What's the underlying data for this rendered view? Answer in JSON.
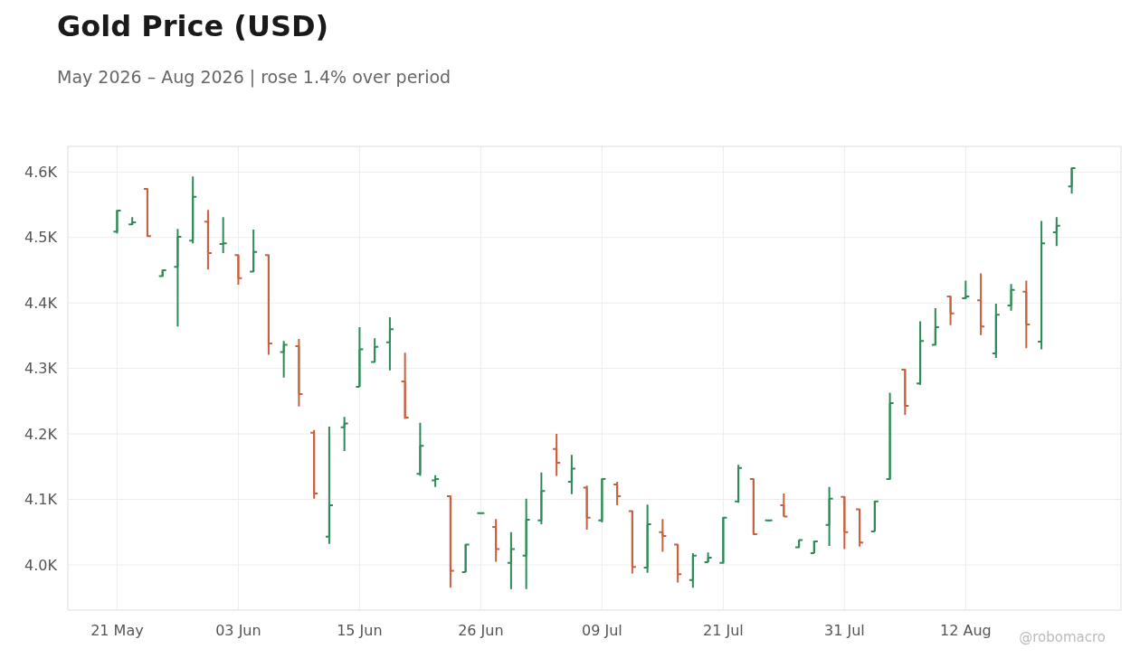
{
  "chart_data": {
    "type": "candlestick",
    "title": "Gold Price (USD)",
    "subtitle": "May 2026 – Aug 2026 | rose 1.4% over period",
    "annotations": [
      "@robomacro"
    ],
    "categories": [
      "21 May",
      null,
      null,
      null,
      null,
      null,
      null,
      null,
      "03 Jun",
      null,
      null,
      null,
      null,
      null,
      null,
      null,
      "15 Jun",
      null,
      null,
      null,
      null,
      null,
      null,
      null,
      "26 Jun",
      null,
      null,
      null,
      null,
      null,
      null,
      null,
      "09 Jul",
      null,
      null,
      null,
      null,
      null,
      null,
      null,
      "21 Jul",
      null,
      null,
      null,
      null,
      null,
      null,
      null,
      "31 Jul",
      null,
      null,
      null,
      null,
      null,
      null,
      null,
      "12 Aug",
      null,
      null,
      null,
      null,
      null,
      null,
      null
    ],
    "ohlc": [
      [
        4509,
        4542,
        4506,
        4541
      ],
      [
        4520,
        4531,
        4519,
        4523
      ],
      [
        4574,
        4575,
        4501,
        4502
      ],
      [
        4441,
        4451,
        4440,
        4450
      ],
      [
        4455,
        4513,
        4364,
        4501
      ],
      [
        4495,
        4593,
        4491,
        4562
      ],
      [
        4524,
        4542,
        4451,
        4476
      ],
      [
        4490,
        4531,
        4476,
        4491
      ],
      [
        4473,
        4474,
        4428,
        4438
      ],
      [
        4448,
        4512,
        4447,
        4478
      ],
      [
        4473,
        4474,
        4321,
        4338
      ],
      [
        4325,
        4342,
        4286,
        4336
      ],
      [
        4334,
        4345,
        4242,
        4261
      ],
      [
        4202,
        4206,
        4101,
        4109
      ],
      [
        4043,
        4211,
        4032,
        4091
      ],
      [
        4210,
        4226,
        4174,
        4216
      ],
      [
        4272,
        4363,
        4272,
        4329
      ],
      [
        4310,
        4346,
        4309,
        4333
      ],
      [
        4340,
        4378,
        4297,
        4360
      ],
      [
        4280,
        4324,
        4223,
        4225
      ],
      [
        4139,
        4217,
        4136,
        4182
      ],
      [
        4129,
        4137,
        4119,
        4131
      ],
      [
        4105,
        4106,
        3965,
        3991
      ],
      [
        3989,
        4032,
        3989,
        4031
      ],
      [
        4079,
        4079,
        4079,
        4079
      ],
      [
        4058,
        4070,
        4005,
        4024
      ],
      [
        4003,
        4050,
        3963,
        4024
      ],
      [
        4014,
        4101,
        3963,
        4069
      ],
      [
        4068,
        4141,
        4062,
        4113
      ],
      [
        4177,
        4200,
        4136,
        4156
      ],
      [
        4127,
        4168,
        4108,
        4147
      ],
      [
        4118,
        4121,
        4054,
        4072
      ],
      [
        4068,
        4132,
        4065,
        4131
      ],
      [
        4123,
        4127,
        4091,
        4105
      ],
      [
        4082,
        4083,
        3987,
        3997
      ],
      [
        3996,
        4092,
        3988,
        4062
      ],
      [
        4050,
        4070,
        4020,
        4044
      ],
      [
        4031,
        4032,
        3973,
        3986
      ],
      [
        3977,
        4018,
        3965,
        4014
      ],
      [
        4004,
        4019,
        4004,
        4011
      ],
      [
        4003,
        4073,
        4002,
        4072
      ],
      [
        4097,
        4153,
        4095,
        4148
      ],
      [
        4131,
        4132,
        4046,
        4047
      ],
      [
        4068,
        4068,
        4068,
        4068
      ],
      [
        4091,
        4109,
        4074,
        4074
      ],
      [
        4027,
        4038,
        4026,
        4038
      ],
      [
        4018,
        4037,
        4018,
        4036
      ],
      [
        4061,
        4119,
        4029,
        4101
      ],
      [
        4104,
        4105,
        4024,
        4050
      ],
      [
        4085,
        4086,
        4028,
        4034
      ],
      [
        4051,
        4098,
        4051,
        4097
      ],
      [
        4131,
        4263,
        4130,
        4247
      ],
      [
        4298,
        4299,
        4229,
        4243
      ],
      [
        4277,
        4372,
        4275,
        4342
      ],
      [
        4336,
        4392,
        4335,
        4363
      ],
      [
        4410,
        4411,
        4366,
        4384
      ],
      [
        4407,
        4434,
        4406,
        4410
      ],
      [
        4404,
        4445,
        4351,
        4364
      ],
      [
        4323,
        4399,
        4316,
        4382
      ],
      [
        4396,
        4429,
        4388,
        4420
      ],
      [
        4417,
        4434,
        4331,
        4367
      ],
      [
        4341,
        4525,
        4329,
        4491
      ],
      [
        4508,
        4531,
        4487,
        4518
      ],
      [
        4578,
        4607,
        4567,
        4606
      ]
    ],
    "colors": [
      "#2e8b57",
      "#2e8b57",
      "#c9603f",
      "#2e8b57",
      "#2e8b57",
      "#2e8b57",
      "#c9603f",
      "#2e8b57",
      "#c9603f",
      "#2e8b57",
      "#c9603f",
      "#2e8b57",
      "#c9603f",
      "#c9603f",
      "#2e8b57",
      "#2e8b57",
      "#2e8b57",
      "#2e8b57",
      "#2e8b57",
      "#c9603f",
      "#2e8b57",
      "#2e8b57",
      "#c9603f",
      "#2e8b57",
      "#2e8b57",
      "#c9603f",
      "#2e8b57",
      "#2e8b57",
      "#2e8b57",
      "#c9603f",
      "#2e8b57",
      "#c9603f",
      "#2e8b57",
      "#c9603f",
      "#c9603f",
      "#2e8b57",
      "#c9603f",
      "#c9603f",
      "#2e8b57",
      "#2e8b57",
      "#2e8b57",
      "#2e8b57",
      "#c9603f",
      "#2e8b57",
      "#c9603f",
      "#2e8b57",
      "#2e8b57",
      "#2e8b57",
      "#c9603f",
      "#c9603f",
      "#2e8b57",
      "#2e8b57",
      "#c9603f",
      "#2e8b57",
      "#2e8b57",
      "#c9603f",
      "#2e8b57",
      "#c9603f",
      "#2e8b57",
      "#2e8b57",
      "#c9603f",
      "#2e8b57",
      "#2e8b57",
      "#2e8b57"
    ],
    "ylim": [
      3931,
      4639
    ],
    "yticks": [
      {
        "value": 4000,
        "label": "4.0K"
      },
      {
        "value": 4100,
        "label": "4.1K"
      },
      {
        "value": 4200,
        "label": "4.2K"
      },
      {
        "value": 4300,
        "label": "4.3K"
      },
      {
        "value": 4400,
        "label": "4.4K"
      },
      {
        "value": 4500,
        "label": "4.5K"
      },
      {
        "value": 4600,
        "label": "4.6K"
      }
    ],
    "grid": true
  }
}
